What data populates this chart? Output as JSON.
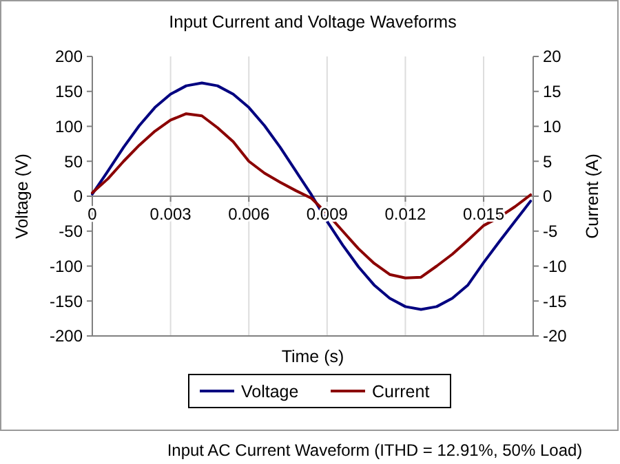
{
  "chart_data": {
    "type": "line",
    "title": "Input Current and Voltage Waveforms",
    "xlabel": "Time (s)",
    "ylabel": "Voltage (V)",
    "y2label": "Current (A)",
    "x": [
      0,
      0.0006,
      0.0012,
      0.0018,
      0.0024,
      0.003,
      0.0036,
      0.0042,
      0.0048,
      0.0054,
      0.006,
      0.0066,
      0.0072,
      0.0078,
      0.0084,
      0.009,
      0.0096,
      0.0102,
      0.0108,
      0.0114,
      0.012,
      0.0126,
      0.0132,
      0.0138,
      0.0144,
      0.015,
      0.0156,
      0.0162,
      0.0168
    ],
    "series": [
      {
        "name": "Voltage",
        "color": "#000080",
        "values": [
          3,
          36,
          70,
          101,
          127,
          146,
          158,
          162,
          158,
          146,
          127,
          101,
          70,
          36,
          2,
          -36,
          -70,
          -101,
          -127,
          -146,
          -158,
          -162,
          -158,
          -146,
          -127,
          -95,
          -65,
          -36,
          -7
        ]
      },
      {
        "name": "Current",
        "color": "#8b0000",
        "axis": "y2",
        "values": [
          0.5,
          2.5,
          5.0,
          7.3,
          9.3,
          10.9,
          11.8,
          11.5,
          9.8,
          7.8,
          5.0,
          3.3,
          2.0,
          0.8,
          -0.3,
          -2.5,
          -5.0,
          -7.5,
          -9.6,
          -11.2,
          -11.7,
          -11.6,
          -10.0,
          -8.3,
          -6.3,
          -4.2,
          -3.0,
          -1.5,
          0.2
        ]
      }
    ],
    "xlim": [
      0,
      0.0169
    ],
    "xticks": [
      0,
      0.003,
      0.006,
      0.009,
      0.012,
      0.015
    ],
    "ylim": [
      -200,
      200
    ],
    "yticks": [
      -200,
      -150,
      -100,
      -50,
      0,
      50,
      100,
      150,
      200
    ],
    "y2lim": [
      -20,
      20
    ],
    "y2ticks": [
      -20,
      -15,
      -10,
      -5,
      0,
      5,
      10,
      15,
      20
    ],
    "grid": "x",
    "legend": "bottom",
    "marker": "none",
    "line_style": "solid",
    "annotations": [
      "Input AC Current Waveform (ITHD = 12.91%, 50% Load)"
    ]
  }
}
